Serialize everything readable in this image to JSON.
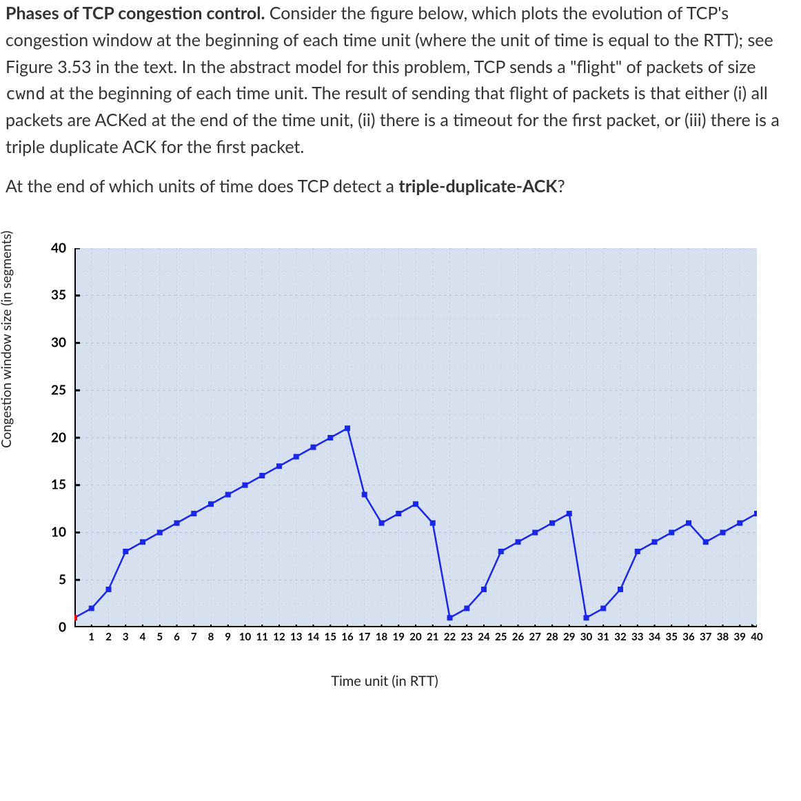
{
  "paragraph": {
    "lead_bold": "Phases of TCP congestion control.",
    "body_before_code": " Consider the figure below, which plots the evolution of TCP's congestion window at the beginning of each time unit (where the unit of time is equal to the RTT); see Figure 3.53 in the text. In the abstract model for this problem, TCP sends a \"flight\" of packets of size ",
    "code": "cwnd",
    "body_after_code": " at the beginning of each time unit. The result of sending that flight of packets is that either (i) all packets are ACKed at the end of the time unit, (ii) there is a timeout for the first packet, or (iii) there is a triple duplicate ACK for the first packet."
  },
  "question": {
    "before_bold": "At the end of which units of time does TCP detect a ",
    "bold": "triple-duplicate-ACK",
    "after_bold": "?"
  },
  "chart": {
    "type": "line",
    "xlabel": "Time unit (in RTT)",
    "ylabel": "Congestion window size (in segments)",
    "xlim": [
      0,
      40
    ],
    "ylim": [
      0,
      40
    ],
    "yticks": [
      0,
      5,
      10,
      15,
      20,
      25,
      30,
      35,
      40
    ],
    "xticks": [
      1,
      2,
      3,
      4,
      5,
      6,
      7,
      8,
      9,
      10,
      11,
      12,
      13,
      14,
      15,
      16,
      17,
      18,
      19,
      20,
      21,
      22,
      23,
      24,
      25,
      26,
      27,
      28,
      29,
      30,
      31,
      32,
      33,
      34,
      35,
      36,
      37,
      38,
      39,
      40
    ],
    "background_color": "#d7e0ef",
    "grid_color": "#b9c5dd",
    "minor_grid_color": "#cbd4e7",
    "axis_color": "#000000",
    "line_color": "#1a26e8",
    "line_width": 2.5,
    "marker_color": "#1a26e8",
    "marker_size": 4,
    "origin_marker_color": "#ff0000",
    "label_fontsize": 19,
    "tick_fontsize_y": 19,
    "tick_fontsize_x": 15,
    "series": {
      "x": [
        0,
        1,
        2,
        3,
        4,
        5,
        6,
        7,
        8,
        9,
        10,
        11,
        12,
        13,
        14,
        15,
        16,
        17,
        18,
        19,
        20,
        21,
        22,
        23,
        24,
        25,
        26,
        27,
        28,
        29,
        30,
        31,
        32,
        33,
        34,
        35,
        36,
        37,
        38,
        39,
        40
      ],
      "y": [
        1,
        2,
        4,
        8,
        9,
        10,
        11,
        12,
        13,
        14,
        15,
        16,
        17,
        18,
        19,
        20,
        21,
        14,
        11,
        12,
        13,
        11,
        1,
        2,
        4,
        8,
        9,
        10,
        11,
        12,
        1,
        2,
        4,
        8,
        9,
        10,
        11,
        9,
        10,
        11,
        12
      ]
    }
  }
}
